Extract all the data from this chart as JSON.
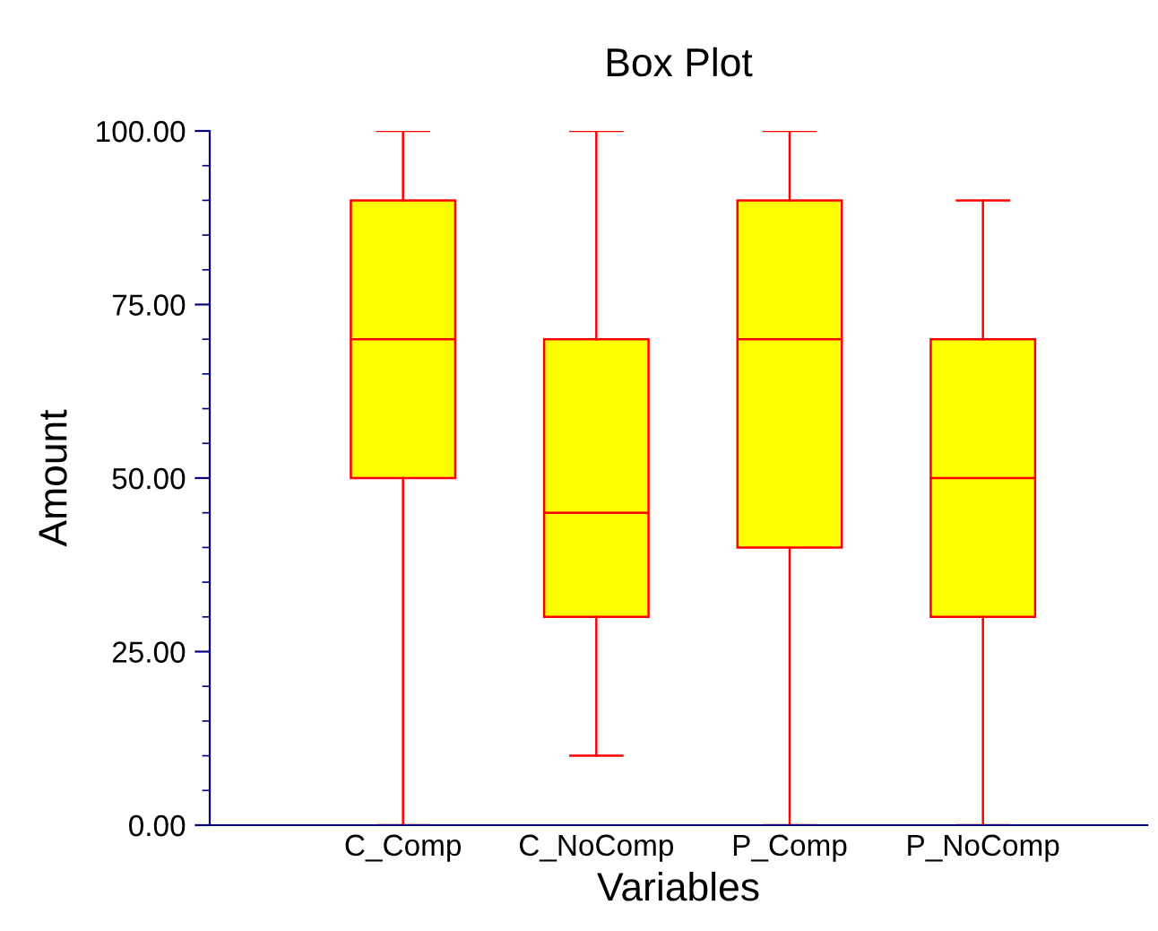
{
  "chart_data": {
    "type": "box",
    "title": "Box Plot",
    "xlabel": "Variables",
    "ylabel": "Amount",
    "categories": [
      "C_Comp",
      "C_NoComp",
      "P_Comp",
      "P_NoComp"
    ],
    "boxes": [
      {
        "low": 0,
        "q1": 50,
        "median": 70,
        "q3": 90,
        "high": 100
      },
      {
        "low": 10,
        "q1": 30,
        "median": 45,
        "q3": 70,
        "high": 100
      },
      {
        "low": 0,
        "q1": 40,
        "median": 70,
        "q3": 90,
        "high": 100
      },
      {
        "low": 0,
        "q1": 30,
        "median": 50,
        "q3": 70,
        "high": 90
      }
    ],
    "color": "#ffff00",
    "ylim": [
      0,
      100
    ],
    "yticks": [
      {
        "value": 0,
        "label": "0.00"
      },
      {
        "value": 25,
        "label": "25.00"
      },
      {
        "value": 50,
        "label": "50.00"
      },
      {
        "value": 75,
        "label": "75.00"
      },
      {
        "value": 100,
        "label": "100.00"
      }
    ],
    "grid": false,
    "legend": false
  }
}
